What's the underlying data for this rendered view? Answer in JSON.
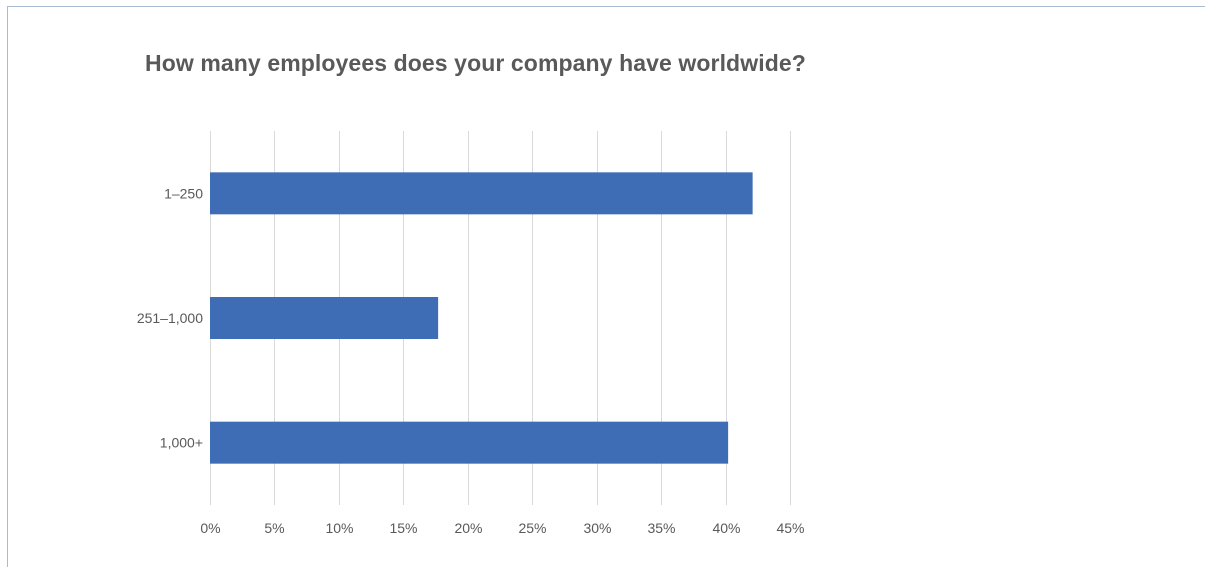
{
  "chart_data": {
    "type": "bar",
    "orientation": "horizontal",
    "title": "How many employees does your company have worldwide?",
    "categories": [
      "1–250",
      "251–1,000",
      "1,000+"
    ],
    "values": [
      42.1,
      17.7,
      40.2
    ],
    "value_unit": "%",
    "xlim": [
      0,
      45
    ],
    "xticks": [
      0,
      5,
      10,
      15,
      20,
      25,
      30,
      35,
      40,
      45
    ],
    "xtick_labels": [
      "0%",
      "5%",
      "10%",
      "15%",
      "20%",
      "25%",
      "30%",
      "35%",
      "40%",
      "45%"
    ],
    "xlabel": "",
    "ylabel": "",
    "grid": "vertical",
    "legend": "none",
    "bar_color": "#3f6db5",
    "grid_color": "#d9d9d9",
    "text_color": "#595959"
  }
}
